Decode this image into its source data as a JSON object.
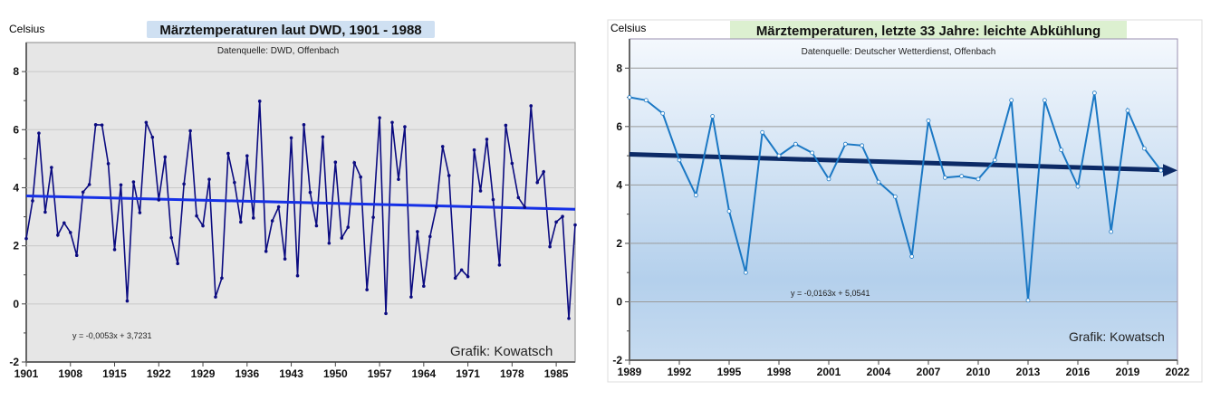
{
  "chart_data": [
    {
      "type": "line",
      "title": "Märztemperaturen laut DWD, 1901 - 1988",
      "subtitle": "Datenquelle: DWD, Offenbach",
      "ylabel": "Celsius",
      "credit": "Grafik: Kowatsch",
      "trend_equation": "y = -0,0053x + 3,7231",
      "trend": {
        "start": 3.72,
        "end": 3.26
      },
      "xlim": [
        1901,
        1988
      ],
      "ylim": [
        -2,
        9
      ],
      "xticks": [
        "1901",
        "1908",
        "1915",
        "1922",
        "1929",
        "1936",
        "1943",
        "1950",
        "1957",
        "1964",
        "1971",
        "1978",
        "1985"
      ],
      "yticks": [
        "-2",
        "0",
        "2",
        "4",
        "6",
        "8"
      ],
      "x_start": 1901,
      "values": [
        2.25,
        3.55,
        5.88,
        3.16,
        4.7,
        2.37,
        2.79,
        2.46,
        1.67,
        3.85,
        4.11,
        6.17,
        6.16,
        4.83,
        1.87,
        4.1,
        0.1,
        4.2,
        3.14,
        6.25,
        5.74,
        3.58,
        5.06,
        2.28,
        1.39,
        4.13,
        5.96,
        3.03,
        2.69,
        4.29,
        0.24,
        0.89,
        5.18,
        4.18,
        2.82,
        5.1,
        2.96,
        6.98,
        1.81,
        2.86,
        3.34,
        1.55,
        5.72,
        0.97,
        6.17,
        3.84,
        2.69,
        5.75,
        2.09,
        4.88,
        2.27,
        2.64,
        4.86,
        4.37,
        0.49,
        2.98,
        6.41,
        -0.33,
        6.25,
        4.29,
        6.1,
        0.24,
        2.49,
        0.61,
        2.32,
        3.33,
        5.42,
        4.42,
        0.89,
        1.17,
        0.94,
        5.3,
        3.89,
        5.67,
        3.59,
        1.34,
        6.15,
        4.84,
        3.66,
        3.33,
        6.82,
        4.18,
        4.55,
        1.97,
        2.82,
        3.01,
        -0.5,
        2.72
      ],
      "colors": {
        "line": "#0b0b80",
        "trend": "#1530e6",
        "plot_bg": "#e6e6e6",
        "title_bg": "#cfe0f2"
      }
    },
    {
      "type": "line",
      "title": "Märztemperaturen, letzte 33 Jahre: leichte Abkühlung",
      "subtitle": "Datenquelle: Deutscher Wetterdienst, Offenbach",
      "ylabel": "Celsius",
      "credit": "Grafik: Kowatsch",
      "trend_equation": "y = -0,0163x + 5,0541",
      "trend": {
        "start": 5.05,
        "end": 4.5
      },
      "xlim": [
        1989,
        2022
      ],
      "ylim": [
        -2,
        9
      ],
      "xticks": [
        "1989",
        "1992",
        "1995",
        "1998",
        "2001",
        "2004",
        "2007",
        "2010",
        "2013",
        "2016",
        "2019",
        "2022"
      ],
      "yticks": [
        "-2",
        "0",
        "2",
        "4",
        "6",
        "8"
      ],
      "x_start": 1989,
      "values": [
        7.0,
        6.9,
        6.45,
        4.85,
        3.65,
        6.35,
        3.1,
        1.0,
        5.8,
        5.0,
        5.4,
        5.1,
        4.2,
        5.4,
        5.35,
        4.1,
        3.6,
        1.55,
        6.2,
        4.25,
        4.3,
        4.2,
        4.85,
        6.9,
        0.05,
        6.9,
        5.2,
        3.95,
        7.15,
        2.4,
        6.55,
        5.25,
        4.5
      ],
      "colors": {
        "line": "#1b78c4",
        "trend": "#0c2a66",
        "title_bg": "#dcf0d0"
      }
    }
  ]
}
